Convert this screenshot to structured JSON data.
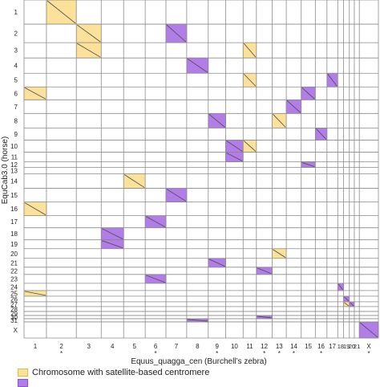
{
  "chart_data": {
    "type": "heatmap",
    "subtype": "synteny dot plot",
    "xlabel": "Equus_quagga_cen (Burchell’s zebra)",
    "ylabel": "EquCab3.0 (horse)",
    "x_chromosomes": [
      {
        "label": "1",
        "len": 27,
        "marked": false
      },
      {
        "label": "2",
        "len": 36,
        "marked": true
      },
      {
        "label": "3",
        "len": 30,
        "marked": false
      },
      {
        "label": "4",
        "len": 27,
        "marked": false
      },
      {
        "label": "5",
        "len": 26,
        "marked": false
      },
      {
        "label": "6",
        "len": 25,
        "marked": true
      },
      {
        "label": "7",
        "len": 25,
        "marked": false
      },
      {
        "label": "8",
        "len": 26,
        "marked": false
      },
      {
        "label": "9",
        "len": 21,
        "marked": true
      },
      {
        "label": "10",
        "len": 21,
        "marked": false
      },
      {
        "label": "11",
        "len": 16,
        "marked": false
      },
      {
        "label": "12",
        "len": 19,
        "marked": true
      },
      {
        "label": "13",
        "len": 17,
        "marked": true
      },
      {
        "label": "14",
        "len": 18,
        "marked": true
      },
      {
        "label": "15",
        "len": 17,
        "marked": false
      },
      {
        "label": "16",
        "len": 14,
        "marked": true
      },
      {
        "label": "17",
        "len": 13,
        "marked": false
      },
      {
        "label": "18",
        "len": 7,
        "marked": false
      },
      {
        "label": "19",
        "len": 7,
        "marked": false
      },
      {
        "label": "20",
        "len": 6,
        "marked": false
      },
      {
        "label": "21",
        "len": 6,
        "marked": false
      },
      {
        "label": "X",
        "len": 23,
        "marked": true
      }
    ],
    "y_chromosomes": [
      {
        "label": "1",
        "len": 30
      },
      {
        "label": "2",
        "len": 23
      },
      {
        "label": "3",
        "len": 19
      },
      {
        "label": "4",
        "len": 19
      },
      {
        "label": "5",
        "len": 17
      },
      {
        "label": "6",
        "len": 16
      },
      {
        "label": "7",
        "len": 17
      },
      {
        "label": "8",
        "len": 18
      },
      {
        "label": "9",
        "len": 15
      },
      {
        "label": "10",
        "len": 15
      },
      {
        "label": "11",
        "len": 12
      },
      {
        "label": "12",
        "len": 7
      },
      {
        "label": "13",
        "len": 8
      },
      {
        "label": "14",
        "len": 18
      },
      {
        "label": "15",
        "len": 17
      },
      {
        "label": "16",
        "len": 17
      },
      {
        "label": "17",
        "len": 15
      },
      {
        "label": "18",
        "len": 15
      },
      {
        "label": "19",
        "len": 11
      },
      {
        "label": "20",
        "len": 12
      },
      {
        "label": "21",
        "len": 11
      },
      {
        "label": "22",
        "len": 9
      },
      {
        "label": "23",
        "len": 11
      },
      {
        "label": "24",
        "len": 9
      },
      {
        "label": "25",
        "len": 7
      },
      {
        "label": "26",
        "len": 7
      },
      {
        "label": "27",
        "len": 6
      },
      {
        "label": "28",
        "len": 6
      },
      {
        "label": "29",
        "len": 5
      },
      {
        "label": "30",
        "len": 4
      },
      {
        "label": "31",
        "len": 4
      },
      {
        "label": "X",
        "len": 20
      }
    ],
    "blocks": [
      {
        "x": "2",
        "y": "1",
        "type": "satellite"
      },
      {
        "x": "3",
        "y": "2",
        "type": "satellite"
      },
      {
        "x": "7",
        "y": "2",
        "type": "other"
      },
      {
        "x": "3",
        "y": "3",
        "type": "satellite"
      },
      {
        "x": "11",
        "y": "3",
        "type": "satellite"
      },
      {
        "x": "8",
        "y": "4",
        "type": "other"
      },
      {
        "x": "11",
        "y": "5",
        "type": "satellite"
      },
      {
        "x": "17",
        "y": "5",
        "type": "other"
      },
      {
        "x": "1",
        "y": "6",
        "type": "satellite"
      },
      {
        "x": "15",
        "y": "6",
        "type": "other"
      },
      {
        "x": "14",
        "y": "7",
        "type": "other"
      },
      {
        "x": "9",
        "y": "8",
        "type": "other"
      },
      {
        "x": "13",
        "y": "8",
        "type": "satellite"
      },
      {
        "x": "16",
        "y": "9",
        "type": "other"
      },
      {
        "x": "10",
        "y": "10",
        "type": "other"
      },
      {
        "x": "11",
        "y": "10",
        "type": "satellite"
      },
      {
        "x": "10",
        "y": "11",
        "type": "other"
      },
      {
        "x": "15",
        "y": "12",
        "type": "other"
      },
      {
        "x": "5",
        "y": "14",
        "type": "satellite"
      },
      {
        "x": "7",
        "y": "15",
        "type": "other"
      },
      {
        "x": "1",
        "y": "16",
        "type": "satellite"
      },
      {
        "x": "6",
        "y": "17",
        "type": "other"
      },
      {
        "x": "4",
        "y": "18",
        "type": "other"
      },
      {
        "x": "4",
        "y": "19",
        "type": "other"
      },
      {
        "x": "13",
        "y": "20",
        "type": "satellite"
      },
      {
        "x": "9",
        "y": "21",
        "type": "other"
      },
      {
        "x": "12",
        "y": "22",
        "type": "other"
      },
      {
        "x": "6",
        "y": "23",
        "type": "other"
      },
      {
        "x": "18",
        "y": "24",
        "type": "other"
      },
      {
        "x": "1",
        "y": "25",
        "type": "satellite"
      },
      {
        "x": "19",
        "y": "26",
        "type": "other"
      },
      {
        "x": "19",
        "y": "27",
        "type": "satellite"
      },
      {
        "x": "20",
        "y": "27",
        "type": "other"
      },
      {
        "x": "12",
        "y": "30",
        "type": "other"
      },
      {
        "x": "8",
        "y": "31",
        "type": "other"
      },
      {
        "x": "X",
        "y": "X",
        "type": "other"
      }
    ],
    "legend": [
      {
        "key": "satellite",
        "label": "Chromosome with satellite-based centromere",
        "fill": "#fbe19a",
        "stroke": "#e3b93e"
      },
      {
        "key": "other",
        "label": "",
        "fill": "#b37de8",
        "stroke": "#8c4fd0"
      }
    ],
    "marker_symbol": "*",
    "grid": true,
    "legend_position": "bottom-left"
  }
}
